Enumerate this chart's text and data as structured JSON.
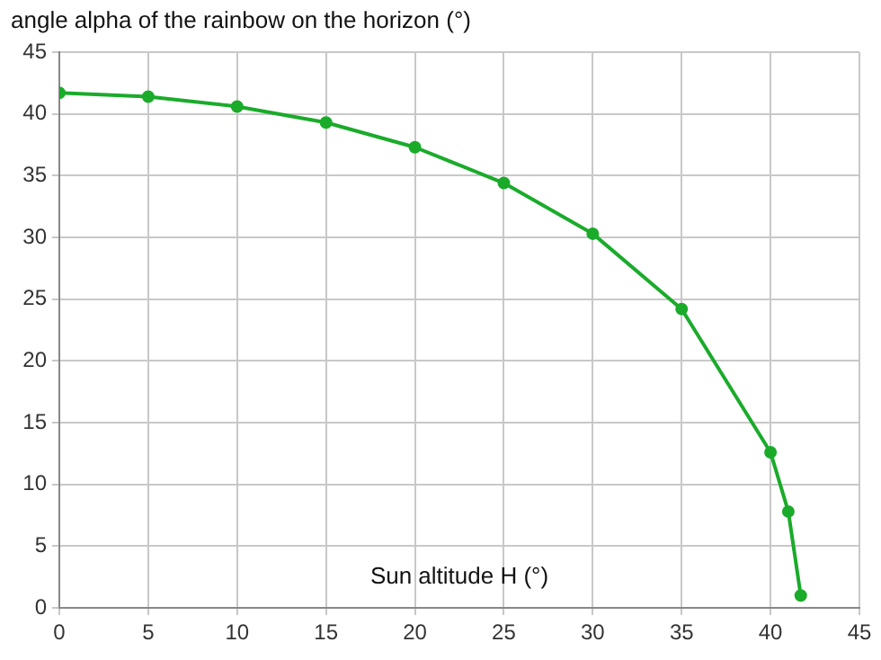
{
  "chart_data": {
    "type": "line",
    "ylabel": "angle alpha of the rainbow on the horizon (°)",
    "xlabel": "Sun altitude H (°)",
    "x": [
      0,
      5,
      10,
      15,
      20,
      25,
      30,
      35,
      40,
      41,
      41.7
    ],
    "series": [
      {
        "color": "#1aab2a",
        "values": [
          41.7,
          41.4,
          40.6,
          39.3,
          37.3,
          34.4,
          30.3,
          24.2,
          12.6,
          7.8,
          1
        ]
      }
    ],
    "xlim": [
      0,
      45
    ],
    "xticks": [
      0,
      5,
      10,
      15,
      20,
      25,
      30,
      35,
      40,
      45
    ],
    "ylim": [
      0,
      45
    ],
    "yticks": [
      0,
      5,
      10,
      15,
      20,
      25,
      30,
      35,
      40,
      45
    ],
    "grid": true,
    "legend": false,
    "marker": "circle",
    "line_style": "solid"
  }
}
